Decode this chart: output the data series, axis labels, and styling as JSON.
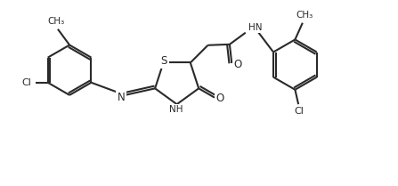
{
  "background_color": "#ffffff",
  "line_color": "#2a2a2a",
  "line_width": 1.5,
  "figsize": [
    4.47,
    2.09
  ],
  "dpi": 100,
  "xlim": [
    0,
    9.5
  ],
  "ylim": [
    0,
    4.2
  ]
}
